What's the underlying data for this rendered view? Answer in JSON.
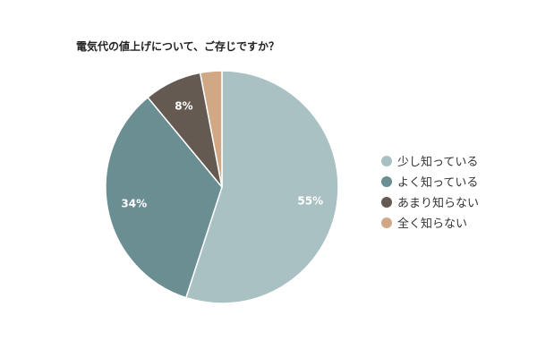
{
  "title": "電気代の値上げについて、ご存じですか？",
  "chart_data": {
    "type": "pie",
    "categories": [
      "少し知っている",
      "よく知っている",
      "あまり知らない",
      "全く知らない"
    ],
    "values": [
      55,
      34,
      8,
      3
    ],
    "labels": [
      "55%",
      "34%",
      "8%",
      ""
    ],
    "colors": [
      "#a9c1c3",
      "#6a8e92",
      "#655a51",
      "#d0a886"
    ],
    "legend_position": "right",
    "start": "top",
    "direction": "clockwise"
  }
}
